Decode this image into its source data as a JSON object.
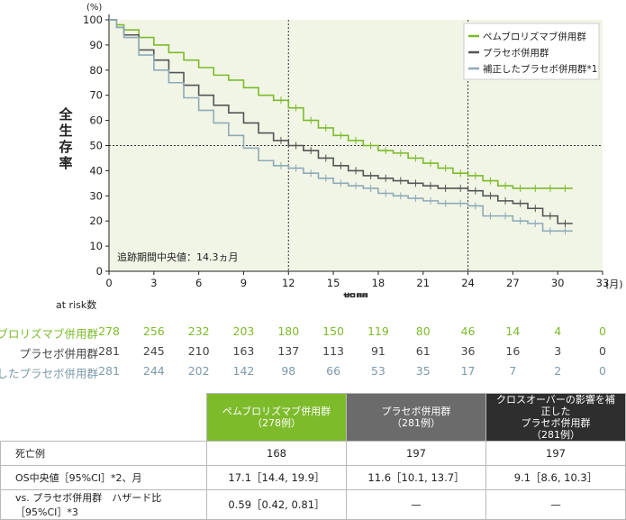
{
  "chart_data": {
    "type": "line",
    "subtype": "kaplan-meier",
    "ylabel": "全生存率",
    "yunit": "(%)",
    "xlabel": "期間",
    "xunit": "(月)",
    "xlim": [
      0,
      33
    ],
    "ylim": [
      0,
      100
    ],
    "xticks": [
      0,
      3,
      6,
      9,
      12,
      15,
      18,
      21,
      24,
      27,
      30,
      33
    ],
    "yticks": [
      0,
      10,
      20,
      30,
      40,
      50,
      60,
      70,
      80,
      90,
      100
    ],
    "reference_lines": {
      "x": [
        12,
        24
      ],
      "y": [
        50
      ]
    },
    "annotation": "追跡期間中央値：14.3ヵ月",
    "legend": {
      "position": "top-right"
    },
    "series": [
      {
        "name": "ペムブロリズマブ併用群",
        "color": "#7dbb2b",
        "x": [
          0,
          0.5,
          1,
          2,
          3,
          4,
          5,
          6,
          7,
          8,
          9,
          10,
          11,
          12,
          13,
          14,
          15,
          16,
          17,
          18,
          19,
          20,
          21,
          22,
          23,
          24,
          25,
          26,
          27,
          28,
          29,
          30,
          31
        ],
        "y": [
          100,
          98,
          96,
          93,
          90,
          87,
          84,
          81,
          78,
          76,
          73,
          70,
          68,
          65,
          60,
          57,
          54,
          52,
          50,
          48,
          47,
          45,
          43,
          41,
          39,
          38,
          36,
          34,
          33,
          33,
          33,
          33,
          33
        ]
      },
      {
        "name": "プラセボ併用群",
        "color": "#555555",
        "x": [
          0,
          0.5,
          1,
          2,
          3,
          4,
          5,
          6,
          7,
          8,
          9,
          10,
          11,
          12,
          13,
          14,
          15,
          16,
          17,
          18,
          19,
          20,
          21,
          22,
          23,
          24,
          25,
          26,
          27,
          28,
          29,
          30,
          31
        ],
        "y": [
          100,
          97,
          94,
          88,
          84,
          79,
          74,
          70,
          66,
          63,
          59,
          55,
          52,
          50,
          48,
          45,
          42,
          40,
          38,
          37,
          36,
          35,
          34,
          33,
          33,
          32,
          30,
          28,
          27,
          25,
          22,
          19,
          19
        ]
      },
      {
        "name": "補正したプラセボ併用群*1",
        "color": "#8eaab9",
        "x": [
          0,
          0.5,
          1,
          2,
          3,
          4,
          5,
          6,
          7,
          8,
          9,
          10,
          11,
          12,
          13,
          14,
          15,
          16,
          17,
          18,
          19,
          20,
          21,
          22,
          23,
          24,
          25,
          26,
          27,
          28,
          29,
          30,
          31
        ],
        "y": [
          100,
          97,
          93,
          86,
          80,
          75,
          69,
          64,
          59,
          54,
          49,
          44,
          42,
          41,
          39,
          37,
          35,
          34,
          33,
          31,
          30,
          29,
          28,
          27,
          27,
          26,
          22,
          22,
          20,
          19,
          16,
          16,
          16
        ]
      }
    ]
  },
  "at_risk": {
    "title": "at risk数",
    "timepoints": [
      0,
      3,
      6,
      9,
      12,
      15,
      18,
      21,
      24,
      27,
      30,
      33
    ],
    "rows": [
      {
        "label": "ペムブロリズマブ併用群",
        "color": "#7dbb2b",
        "values": [
          "278",
          "256",
          "232",
          "203",
          "180",
          "150",
          "119",
          "80",
          "46",
          "14",
          "4",
          "0"
        ]
      },
      {
        "label": "プラセボ併用群",
        "color": "#444444",
        "values": [
          "281",
          "245",
          "210",
          "163",
          "137",
          "113",
          "91",
          "61",
          "36",
          "16",
          "3",
          "0"
        ]
      },
      {
        "label": "補正したプラセボ併用群",
        "color": "#7d9aaa",
        "values": [
          "281",
          "244",
          "202",
          "142",
          "98",
          "66",
          "53",
          "35",
          "17",
          "7",
          "2",
          "0"
        ]
      }
    ]
  },
  "summary_table": {
    "headers": [
      {
        "line1": "ペムブロリズマブ併用群",
        "line2": "（278例）"
      },
      {
        "line1": "プラセボ併用群",
        "line2": "（281例）"
      },
      {
        "line1": "クロスオーバーの影響を補正した",
        "line2": "プラセボ併用群",
        "line3": "（281例）"
      }
    ],
    "rows": [
      {
        "label": "死亡例",
        "values": [
          "168",
          "197",
          "197"
        ]
      },
      {
        "label": "OS中央値［95%CI］*2、月",
        "values": [
          "17.1［14.4, 19.9］",
          "11.6［10.1, 13.7］",
          "9.1［8.6, 10.3］"
        ]
      },
      {
        "label": "vs. プラセボ併用群　ハザード比［95%CI］*3",
        "values": [
          "0.59［0.42, 0.81］",
          "—",
          "—"
        ]
      }
    ]
  }
}
